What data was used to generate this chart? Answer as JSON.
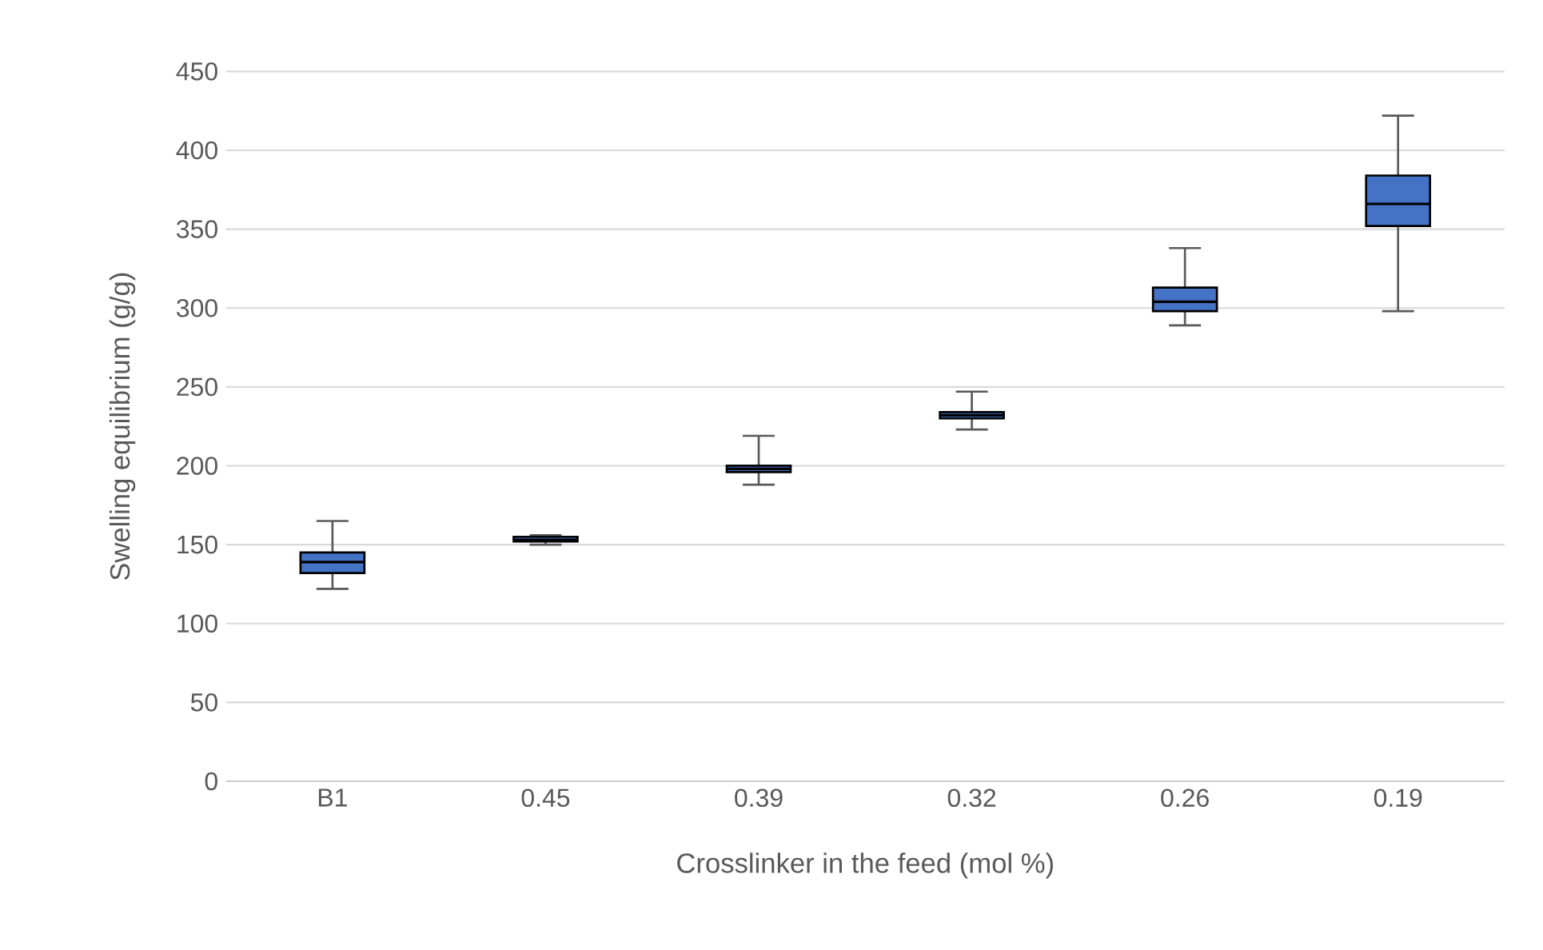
{
  "chart_data": {
    "type": "box",
    "xlabel": "Crosslinker in the feed (mol %)",
    "ylabel": "Swelling equilibrium (g/g)",
    "categories": [
      "B1",
      "0.45",
      "0.39",
      "0.32",
      "0.26",
      "0.19"
    ],
    "color": "#4472c4",
    "boxes": [
      {
        "low": 122,
        "q1": 132,
        "median": 139,
        "q3": 145,
        "high": 165
      },
      {
        "low": 150,
        "q1": 152,
        "median": 153,
        "q3": 155,
        "high": 156
      },
      {
        "low": 188,
        "q1": 196,
        "median": 198,
        "q3": 200,
        "high": 219
      },
      {
        "low": 223,
        "q1": 230,
        "median": 232,
        "q3": 234,
        "high": 247
      },
      {
        "low": 289,
        "q1": 298,
        "median": 304,
        "q3": 313,
        "high": 338
      },
      {
        "low": 298,
        "q1": 352,
        "median": 366,
        "q3": 384,
        "high": 422
      }
    ],
    "ylim": [
      0,
      450
    ],
    "yticks": [
      0,
      50,
      100,
      150,
      200,
      250,
      300,
      350,
      400,
      450
    ],
    "grid": "y"
  }
}
